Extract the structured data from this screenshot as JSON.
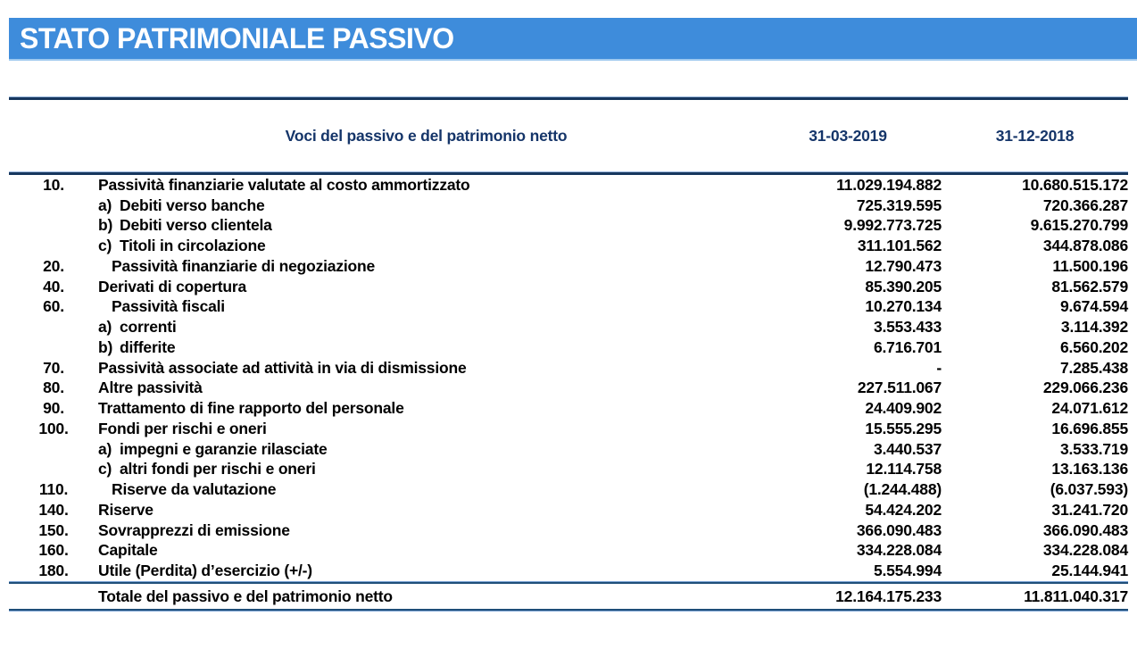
{
  "title": "STATO PATRIMONIALE PASSIVO",
  "colors": {
    "banner_blue": "#3E8CDB",
    "navy_text": "#153569",
    "rule_navy": "#17375E",
    "rule_steel": "#1F4E79"
  },
  "table": {
    "headers": {
      "label": "Voci del passivo e del patrimonio netto",
      "col_2019": "31-03-2019",
      "col_2018": "31-12-2018"
    },
    "rows": [
      {
        "num": "10.",
        "letter": "",
        "label": "Passività finanziarie valutate al costo ammortizzato",
        "indent": false,
        "v1": "11.029.194.882",
        "v2": "10.680.515.172"
      },
      {
        "num": "",
        "letter": "a)",
        "label": "Debiti verso banche",
        "indent": false,
        "v1": "725.319.595",
        "v2": "720.366.287"
      },
      {
        "num": "",
        "letter": "b)",
        "label": "Debiti verso clientela",
        "indent": false,
        "v1": "9.992.773.725",
        "v2": "9.615.270.799"
      },
      {
        "num": "",
        "letter": "c)",
        "label": "Titoli in circolazione",
        "indent": false,
        "v1": "311.101.562",
        "v2": "344.878.086"
      },
      {
        "num": "20.",
        "letter": "",
        "label": "Passività finanziarie di negoziazione",
        "indent": true,
        "v1": "12.790.473",
        "v2": "11.500.196"
      },
      {
        "num": "40.",
        "letter": "",
        "label": "Derivati di copertura",
        "indent": false,
        "v1": "85.390.205",
        "v2": "81.562.579"
      },
      {
        "num": "60.",
        "letter": "",
        "label": "Passività fiscali",
        "indent": true,
        "v1": "10.270.134",
        "v2": "9.674.594"
      },
      {
        "num": "",
        "letter": "a)",
        "label": "correnti",
        "indent": false,
        "v1": "3.553.433",
        "v2": "3.114.392"
      },
      {
        "num": "",
        "letter": "b)",
        "label": "differite",
        "indent": false,
        "v1": "6.716.701",
        "v2": "6.560.202"
      },
      {
        "num": "70.",
        "letter": "",
        "label": "Passività associate ad attività in via di dismissione",
        "indent": false,
        "v1": "-",
        "v2": "7.285.438"
      },
      {
        "num": "80.",
        "letter": "",
        "label": "Altre passività",
        "indent": false,
        "v1": "227.511.067",
        "v2": "229.066.236"
      },
      {
        "num": "90.",
        "letter": "",
        "label": "Trattamento di fine rapporto del personale",
        "indent": false,
        "v1": "24.409.902",
        "v2": "24.071.612"
      },
      {
        "num": "100.",
        "letter": "",
        "label": "Fondi per rischi e oneri",
        "indent": false,
        "v1": "15.555.295",
        "v2": "16.696.855"
      },
      {
        "num": "",
        "letter": "a)",
        "label": "impegni e garanzie rilasciate",
        "indent": false,
        "v1": "3.440.537",
        "v2": "3.533.719"
      },
      {
        "num": "",
        "letter": "c)",
        "label": "altri fondi per rischi e oneri",
        "indent": false,
        "v1": "12.114.758",
        "v2": "13.163.136"
      },
      {
        "num": "110.",
        "letter": "",
        "label": "Riserve da valutazione",
        "indent": true,
        "v1": "(1.244.488)",
        "v2": "(6.037.593)"
      },
      {
        "num": "140.",
        "letter": "",
        "label": "Riserve",
        "indent": false,
        "v1": "54.424.202",
        "v2": "31.241.720"
      },
      {
        "num": "150.",
        "letter": "",
        "label": "Sovrapprezzi di emissione",
        "indent": false,
        "v1": "366.090.483",
        "v2": "366.090.483"
      },
      {
        "num": "160.",
        "letter": "",
        "label": "Capitale",
        "indent": false,
        "v1": "334.228.084",
        "v2": "334.228.084"
      },
      {
        "num": "180.",
        "letter": "",
        "label": "Utile (Perdita) d’esercizio (+/-)",
        "indent": false,
        "v1": "5.554.994",
        "v2": "25.144.941"
      }
    ],
    "total": {
      "label": "Totale del passivo e del patrimonio netto",
      "v1": "12.164.175.233",
      "v2": "11.811.040.317"
    }
  }
}
